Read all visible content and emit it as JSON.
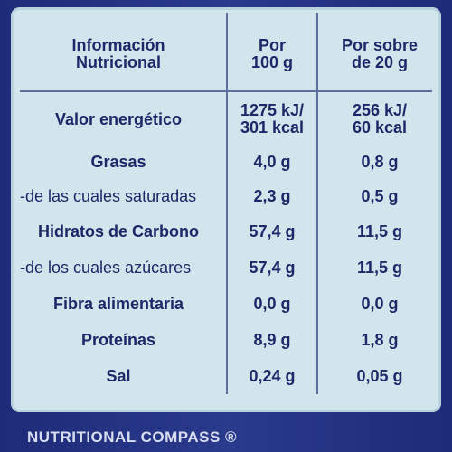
{
  "table": {
    "header": [
      [
        "Información",
        "Nutricional"
      ],
      [
        "Por",
        "100 g"
      ],
      [
        "Por sobre",
        "de 20 g"
      ]
    ],
    "rows": [
      [
        [
          "Valor energético"
        ],
        [
          "1275 kJ/",
          "301 kcal"
        ],
        [
          "256 kJ/",
          "60 kcal"
        ]
      ],
      [
        [
          "Grasas"
        ],
        [
          "4,0 g"
        ],
        [
          "0,8 g"
        ]
      ],
      [
        [
          "-de las cuales saturadas"
        ],
        [
          "2,3 g"
        ],
        [
          "0,5 g"
        ]
      ],
      [
        [
          "Hidratos de Carbono"
        ],
        [
          "57,4 g"
        ],
        [
          "11,5 g"
        ]
      ],
      [
        [
          "-de los cuales azúcares"
        ],
        [
          "57,4 g"
        ],
        [
          "11,5 g"
        ]
      ],
      [
        [
          "Fibra alimentaria"
        ],
        [
          "0,0 g"
        ],
        [
          "0,0 g"
        ]
      ],
      [
        [
          "Proteínas"
        ],
        [
          "8,9 g"
        ],
        [
          "1,8 g"
        ]
      ],
      [
        [
          "Sal"
        ],
        [
          "0,24 g"
        ],
        [
          "0,05 g"
        ]
      ]
    ]
  },
  "footer": "NUTRITIONAL COMPASS ®"
}
